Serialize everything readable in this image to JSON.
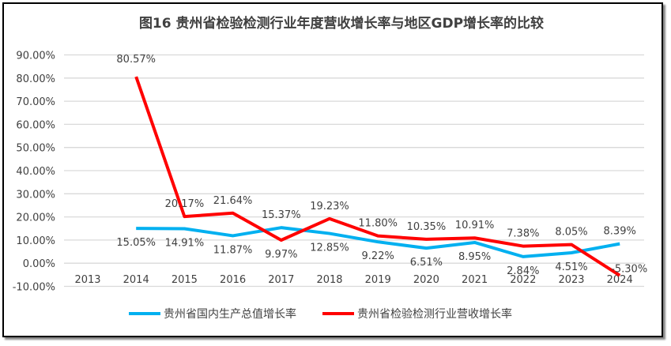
{
  "chart_data": {
    "type": "line",
    "title": "图16  贵州省检验检测行业年度营收增长率与地区GDP增长率的比较",
    "xlabel": "",
    "ylabel": "",
    "categories": [
      "2013",
      "2014",
      "2015",
      "2016",
      "2017",
      "2018",
      "2019",
      "2020",
      "2021",
      "2022",
      "2023",
      "2024"
    ],
    "ylim": [
      -10,
      90
    ],
    "yticks": [
      "90.00%",
      "80.00%",
      "70.00%",
      "60.00%",
      "50.00%",
      "40.00%",
      "30.00%",
      "20.00%",
      "10.00%",
      "0.00%",
      "-10.00%"
    ],
    "grid": true,
    "legend": "bottom",
    "series": [
      {
        "name": "贵州省国内生产总值增长率",
        "color": "#00B0F0",
        "values": [
          null,
          15.05,
          14.91,
          11.87,
          15.37,
          12.85,
          9.22,
          6.51,
          8.95,
          2.84,
          4.51,
          8.39
        ],
        "labels": [
          null,
          "15.05%",
          "14.91%",
          "11.87%",
          "15.37%",
          "12.85%",
          "9.22%",
          "6.51%",
          "8.95%",
          "2.84%",
          "4.51%",
          "8.39%"
        ]
      },
      {
        "name": "贵州省检验检测行业营收增长率",
        "color": "#FF0000",
        "values": [
          null,
          80.57,
          20.17,
          21.64,
          9.97,
          19.23,
          11.8,
          10.35,
          10.91,
          7.38,
          8.05,
          -5.3
        ],
        "labels": [
          null,
          "80.57%",
          "20.17%",
          "21.64%",
          "9.97%",
          "19.23%",
          "11.80%",
          "10.35%",
          "10.91%",
          "7.38%",
          "8.05%",
          "-5.30%"
        ]
      }
    ]
  }
}
